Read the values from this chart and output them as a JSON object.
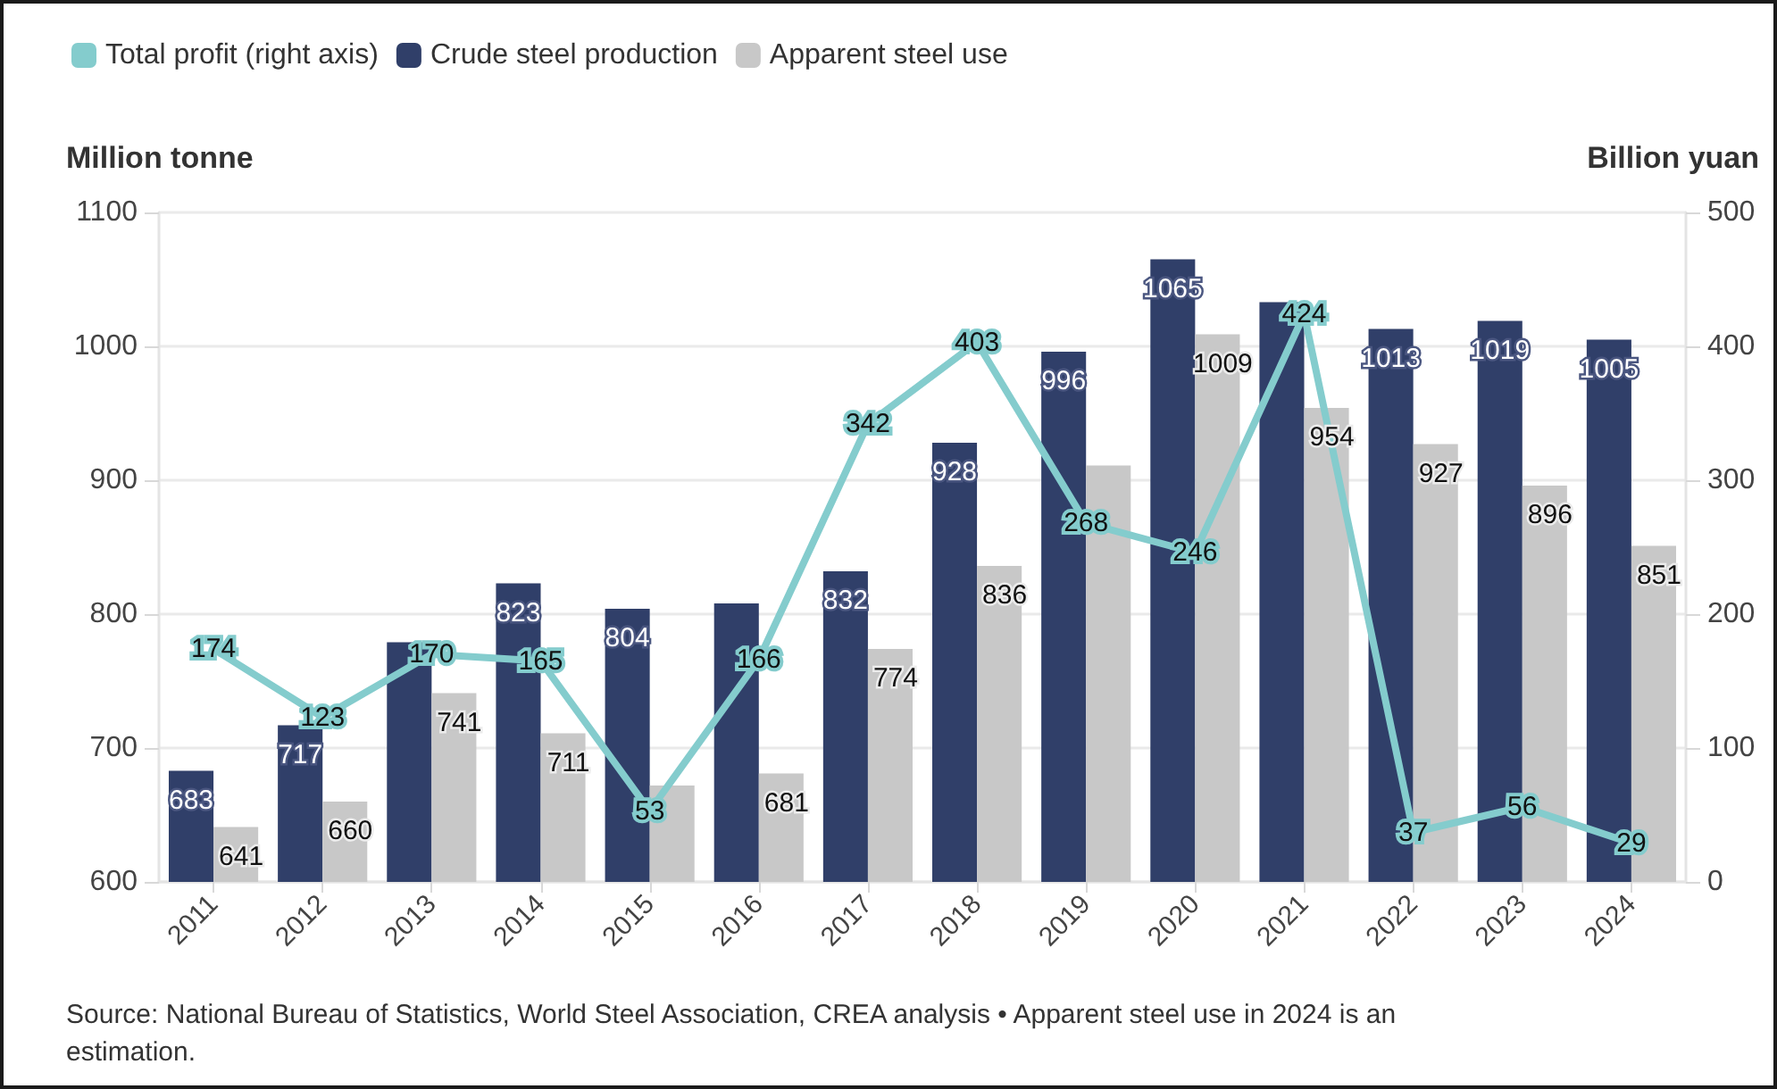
{
  "chart_data": {
    "type": "bar",
    "categories": [
      "2011",
      "2012",
      "2013",
      "2014",
      "2015",
      "2016",
      "2017",
      "2018",
      "2019",
      "2020",
      "2021",
      "2022",
      "2023",
      "2024"
    ],
    "series": [
      {
        "name": "Total profit (right axis)",
        "type": "line",
        "axis": "y2",
        "color": "#84cccd",
        "values": [
          174,
          123,
          170,
          165,
          53,
          166,
          342,
          403,
          268,
          246,
          424,
          37,
          56,
          29
        ],
        "value_labels": [
          "174",
          "123",
          "170",
          "165",
          "53",
          "166",
          "342",
          "403",
          "268",
          "246",
          "424",
          "37",
          "56",
          "29"
        ]
      },
      {
        "name": "Crude steel production",
        "color": "#303f69",
        "values": [
          683,
          717,
          779,
          823,
          804,
          808,
          832,
          928,
          996,
          1065,
          1033,
          1013,
          1019,
          1005
        ],
        "value_labels": [
          "683",
          "717",
          null,
          "823",
          "804",
          null,
          "832",
          "928",
          "996",
          "1065",
          null,
          "1013",
          "1019",
          "1005"
        ]
      },
      {
        "name": "Apparent steel use",
        "color": "#c8c8c8",
        "values": [
          641,
          660,
          741,
          711,
          672,
          681,
          774,
          836,
          911,
          1009,
          954,
          927,
          896,
          851
        ],
        "value_labels": [
          "641",
          "660",
          "741",
          "711",
          null,
          "681",
          "774",
          "836",
          null,
          "1009",
          "954",
          "927",
          "896",
          "851"
        ]
      }
    ],
    "ylabel": "Million tonne",
    "y2label": "Billion yuan",
    "ylim": [
      600,
      1100
    ],
    "yticks": [
      600,
      700,
      800,
      900,
      1000,
      1100
    ],
    "y2lim": [
      0,
      500
    ],
    "y2ticks": [
      0,
      100,
      200,
      300,
      400,
      500
    ],
    "grid": "y",
    "legend": "top left",
    "marker": "none",
    "line_style": "solid",
    "annotations": [
      "Source: National Bureau of Statistics, World Steel Association, CREA analysis • Apparent steel use in 2024 is an estimation."
    ]
  }
}
